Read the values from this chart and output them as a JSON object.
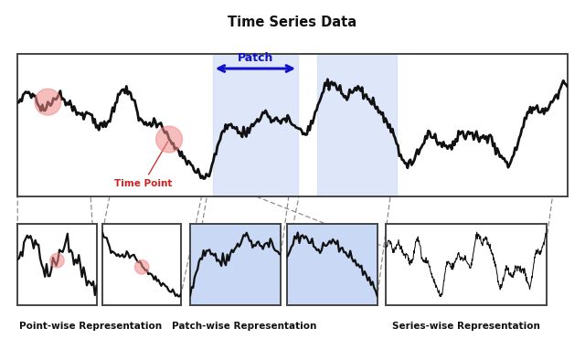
{
  "title": "Time Series Data",
  "patch_label": "Patch",
  "time_point_label": "Time Point",
  "bottom_labels": [
    "Point-wise Representation",
    "Patch-wise Representation",
    "Series-wise Representation"
  ],
  "bg_color": "#ffffff",
  "line_color": "#111111",
  "patch_fill_color": "#c8d8f5",
  "patch_fill_alpha": 0.6,
  "circle_color": "#f08888",
  "circle_alpha": 0.55,
  "arrow_color": "#1111cc",
  "dashed_color": "#888888"
}
